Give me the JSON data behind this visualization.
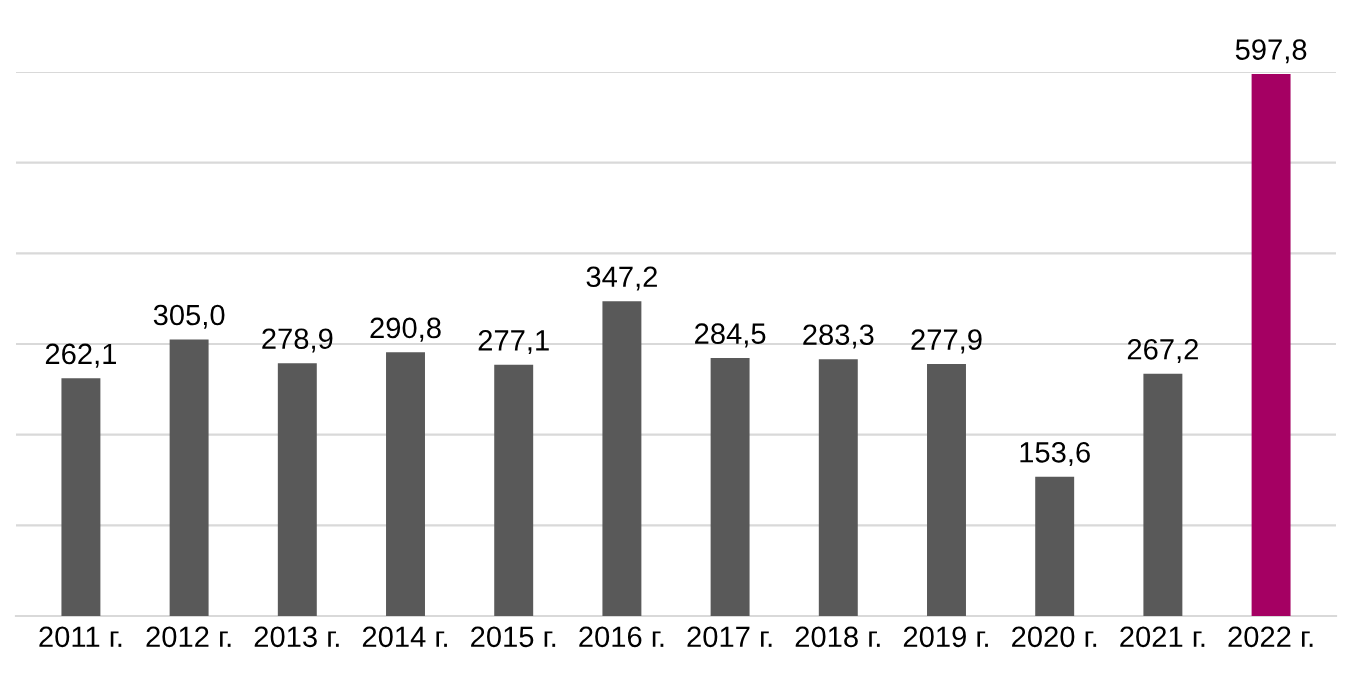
{
  "chart_data": {
    "type": "bar",
    "categories": [
      "2011 г.",
      "2012 г.",
      "2013 г.",
      "2014 г.",
      "2015 г.",
      "2016 г.",
      "2017 г.",
      "2018 г.",
      "2019 г.",
      "2020 г.",
      "2021 г.",
      "2022 г."
    ],
    "values": [
      262.1,
      305.0,
      278.9,
      290.8,
      277.1,
      347.2,
      284.5,
      283.3,
      277.9,
      153.6,
      267.2,
      597.8
    ],
    "value_labels": [
      "262,1",
      "305,0",
      "278,9",
      "290,8",
      "277,1",
      "347,2",
      "284,5",
      "283,3",
      "277,9",
      "153,6",
      "267,2",
      "597,8"
    ],
    "colors": [
      "#595959",
      "#595959",
      "#595959",
      "#595959",
      "#595959",
      "#595959",
      "#595959",
      "#595959",
      "#595959",
      "#595959",
      "#595959",
      "#a50063"
    ],
    "ylim": [
      0,
      600
    ],
    "yticks": [
      {
        "value": 0,
        "label": null
      },
      {
        "value": 100,
        "label": null
      },
      {
        "value": 200,
        "label": null
      },
      {
        "value": 300,
        "label": null
      },
      {
        "value": 400,
        "label": null
      },
      {
        "value": 500,
        "label": null
      },
      {
        "value": 600,
        "label": null
      }
    ],
    "grid": "y",
    "legend": false,
    "tick_labels": "x"
  }
}
